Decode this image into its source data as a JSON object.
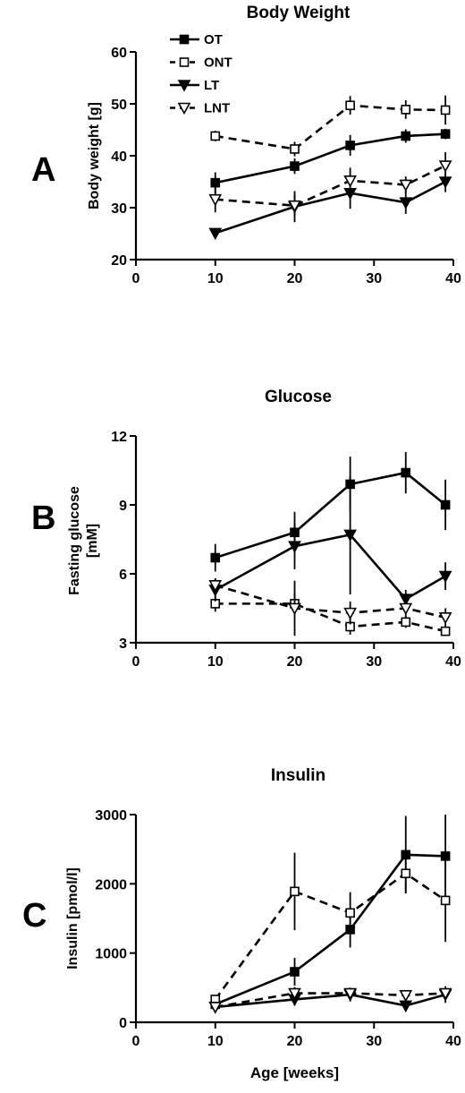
{
  "chart_data": [
    {
      "type": "line",
      "panel_label": "A",
      "title": "Body Weight",
      "ylabel_lines": [
        "Body weight  [g]"
      ],
      "xlabel": "",
      "xlim": [
        0,
        40
      ],
      "ylim": [
        20,
        60
      ],
      "xticks": [
        0,
        10,
        20,
        30,
        40
      ],
      "yticks": [
        20,
        30,
        40,
        50,
        60
      ],
      "x": [
        10,
        20,
        27,
        34,
        39
      ],
      "legend_position": "top-left",
      "series": [
        {
          "name": "OT",
          "values": [
            34.8,
            38.0,
            42.0,
            43.8,
            44.2
          ],
          "err": [
            2.0,
            1.5,
            2.0,
            1.3,
            1.0
          ]
        },
        {
          "name": "ONT",
          "values": [
            43.8,
            41.3,
            49.7,
            48.9,
            48.8
          ],
          "err": [
            1.0,
            1.4,
            1.8,
            1.8,
            2.8
          ]
        },
        {
          "name": "LT",
          "values": [
            25.1,
            30.2,
            32.8,
            31.0,
            35.0
          ],
          "err": [
            0.6,
            3.0,
            3.0,
            2.2,
            2.0
          ]
        },
        {
          "name": "LNT",
          "values": [
            31.6,
            30.4,
            35.2,
            34.4,
            38.1
          ],
          "err": [
            2.5,
            2.0,
            2.5,
            1.6,
            2.6
          ]
        }
      ]
    },
    {
      "type": "line",
      "panel_label": "B",
      "title": "Glucose",
      "ylabel_lines": [
        "Fasting glucose",
        "[mM]"
      ],
      "xlabel": "",
      "xlim": [
        0,
        40
      ],
      "ylim": [
        3,
        12
      ],
      "xticks": [
        0,
        10,
        20,
        30,
        40
      ],
      "yticks": [
        3,
        6,
        9,
        12
      ],
      "x": [
        10,
        20,
        27,
        34,
        39
      ],
      "series": [
        {
          "name": "OT",
          "values": [
            6.7,
            7.8,
            9.9,
            10.4,
            9.0
          ],
          "err": [
            0.6,
            0.9,
            1.2,
            0.9,
            1.1
          ]
        },
        {
          "name": "ONT",
          "values": [
            4.7,
            4.7,
            3.7,
            3.9,
            3.5
          ],
          "err": [
            0.35,
            0.45,
            0.35,
            0.25,
            0.2
          ]
        },
        {
          "name": "LT",
          "values": [
            5.3,
            7.2,
            7.7,
            4.9,
            5.9
          ],
          "err": [
            0.5,
            1.0,
            2.6,
            0.4,
            0.6
          ]
        },
        {
          "name": "LNT",
          "values": [
            5.5,
            4.5,
            4.3,
            4.5,
            4.1
          ],
          "err": [
            0.3,
            1.2,
            0.5,
            0.45,
            0.4
          ]
        }
      ]
    },
    {
      "type": "line",
      "panel_label": "C",
      "title": "Insulin",
      "ylabel_lines": [
        "Insulin [pmol/l]"
      ],
      "xlabel": "Age [weeks]",
      "xlim": [
        0,
        40
      ],
      "ylim": [
        0,
        3000
      ],
      "xticks": [
        0,
        10,
        20,
        30,
        40
      ],
      "yticks": [
        0,
        1000,
        2000,
        3000
      ],
      "x": [
        10,
        20,
        27,
        34,
        39
      ],
      "series": [
        {
          "name": "OT",
          "values": [
            260,
            730,
            1340,
            2420,
            2400
          ],
          "err": [
            60,
            200,
            260,
            560,
            600
          ]
        },
        {
          "name": "ONT",
          "values": [
            330,
            1890,
            1580,
            2150,
            1760
          ],
          "err": [
            60,
            560,
            300,
            280,
            600
          ]
        },
        {
          "name": "LT",
          "values": [
            220,
            330,
            400,
            240,
            400
          ],
          "err": [
            40,
            90,
            100,
            60,
            120
          ]
        },
        {
          "name": "LNT",
          "values": [
            220,
            420,
            420,
            390,
            420
          ],
          "err": [
            40,
            90,
            60,
            50,
            70
          ]
        }
      ]
    }
  ],
  "series_styles": {
    "OT": {
      "dashed": false,
      "marker": "square",
      "filled": true,
      "color": "#000000"
    },
    "ONT": {
      "dashed": true,
      "marker": "square",
      "filled": false,
      "color": "#000000"
    },
    "LT": {
      "dashed": false,
      "marker": "tri-down",
      "filled": true,
      "color": "#000000"
    },
    "LNT": {
      "dashed": true,
      "marker": "tri-down",
      "filled": false,
      "color": "#000000"
    }
  }
}
